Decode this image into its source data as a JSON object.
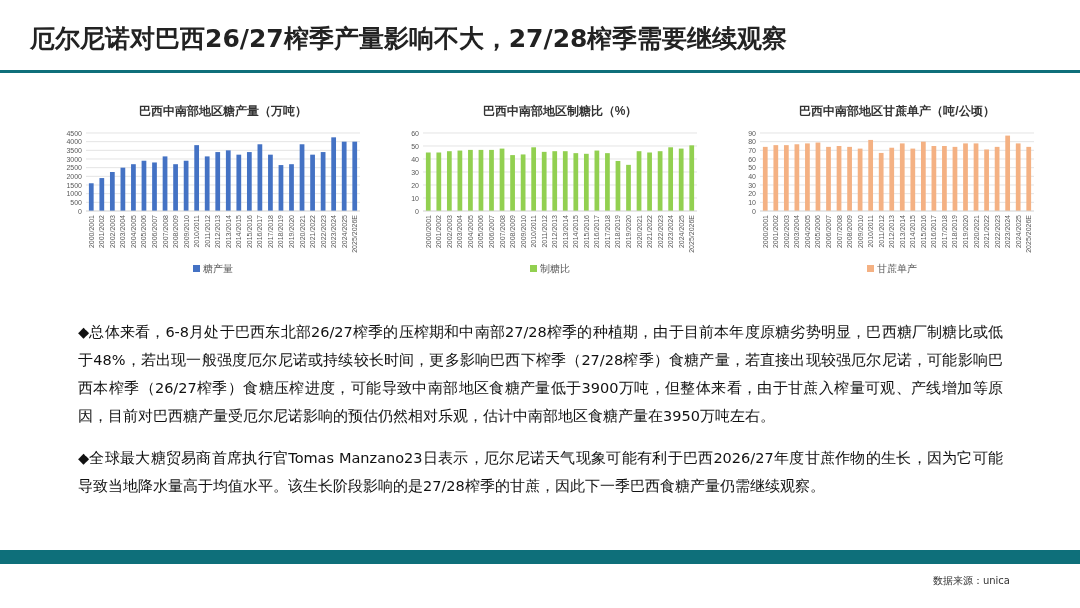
{
  "chart_data": [
    {
      "type": "other",
      "title": "厄尔尼诺对巴西26/27榨季产量影响不大，27/28榨季需要继续观察",
      "annotations": [
        "◆总体来看，6-8月处于巴西东北部26/27榨季的压榨期和中南部27/28榨季的种植期，由于目前本年度原糖劣势明显，巴西糖厂制糖比或低于48%，若出现一般强度厄尔尼诺或持续较长时间，更多影响巴西下榨季（27/28榨季）食糖产量，若直接出现较强厄尔尼诺，可能影响巴西本榨季（26/27榨季）食糖压榨进度，可能导致中南部地区食糖产量低于3900万吨，但整体来看，由于甘蔗入榨量可观、产线增加等原因，目前对巴西糖产量受厄尔尼诺影响的预估仍然相对乐观，估计中南部地区食糖产量在3950万吨左右。",
        "◆全球最大糖贸易商首席执行官Tomas Manzano23日表示，厄尔尼诺天气现象可能有利于巴西2026/27年度甘蔗作物的生长，因为它可能导致当地降水量高于均值水平。该生长阶段影响的是27/28榨季的甘蔗，因此下一季巴西食糖产量仍需继续观察。",
        "数据来源：unica"
      ]
    },
    {
      "type": "bar",
      "title": "巴西中南部地区糖产量（万吨）",
      "categories": [
        "2000/2001",
        "2001/2002",
        "2002/2003",
        "2003/2004",
        "2004/2005",
        "2005/2006",
        "2006/2007",
        "2007/2008",
        "2008/2009",
        "2009/2010",
        "2010/2011",
        "2011/2012",
        "2012/2013",
        "2013/2014",
        "2014/2015",
        "2015/2016",
        "2016/2017",
        "2017/2018",
        "2018/2019",
        "2019/2020",
        "2020/2021",
        "2021/2022",
        "2022/2023",
        "2023/2024",
        "2024/2025",
        "2025/2026E"
      ],
      "series": [
        {
          "name": "糖产量",
          "color": "#4472c4",
          "values": [
            1600,
            1900,
            2250,
            2500,
            2700,
            2900,
            2800,
            3150,
            2700,
            2900,
            3800,
            3150,
            3400,
            3500,
            3250,
            3400,
            3850,
            3250,
            2650,
            2700,
            3850,
            3250,
            3400,
            4250,
            4000,
            4000
          ]
        }
      ],
      "ylim": [
        0,
        4500
      ],
      "yticks": [
        0,
        500,
        1000,
        1500,
        2000,
        2500,
        3000,
        3500,
        4000,
        4500
      ],
      "grid": "y",
      "legend": "bottom"
    },
    {
      "type": "bar",
      "title": "巴西中南部地区制糖比（%）",
      "categories": [
        "2000/2001",
        "2001/2002",
        "2002/2003",
        "2003/2004",
        "2004/2005",
        "2005/2006",
        "2006/2007",
        "2007/2008",
        "2008/2009",
        "2009/2010",
        "2010/2011",
        "2011/2012",
        "2012/2013",
        "2013/2014",
        "2014/2015",
        "2015/2016",
        "2016/2017",
        "2017/2018",
        "2018/2019",
        "2019/2020",
        "2020/2021",
        "2021/2022",
        "2022/2023",
        "2023/2024",
        "2024/2025",
        "2025/2026E"
      ],
      "series": [
        {
          "name": "制糖比",
          "color": "#92d050",
          "values": [
            45,
            45,
            46,
            46.5,
            47,
            47,
            47,
            48,
            43,
            43.5,
            49,
            45.5,
            46,
            46,
            44.5,
            44,
            46.5,
            44.5,
            38.5,
            35.5,
            46,
            45,
            46,
            49,
            48,
            50.5
          ]
        }
      ],
      "ylim": [
        0,
        60
      ],
      "yticks": [
        0,
        10,
        20,
        30,
        40,
        50,
        60
      ],
      "grid": "y",
      "legend": "bottom"
    },
    {
      "type": "bar",
      "title": "巴西中南部地区甘蔗单产（吨/公顷）",
      "categories": [
        "2000/2001",
        "2001/2002",
        "2002/2003",
        "2003/2004",
        "2004/2005",
        "2005/2006",
        "2006/2007",
        "2007/2008",
        "2008/2009",
        "2009/2010",
        "2010/2011",
        "2011/2012",
        "2012/2013",
        "2013/2014",
        "2014/2015",
        "2015/2016",
        "2016/2017",
        "2017/2018",
        "2018/2019",
        "2019/2020",
        "2020/2021",
        "2021/2022",
        "2022/2023",
        "2023/2024",
        "2024/2025",
        "2025/2026E"
      ],
      "series": [
        {
          "name": "甘蔗单产",
          "color": "#f4b183",
          "values": [
            74,
            76,
            76,
            77,
            78,
            79,
            74,
            75,
            74,
            72,
            82,
            67,
            73,
            78,
            72,
            80,
            75,
            75,
            74,
            78,
            78,
            71,
            74,
            87,
            78,
            74
          ]
        }
      ],
      "ylim": [
        0,
        90
      ],
      "yticks": [
        0,
        10,
        20,
        30,
        40,
        50,
        60,
        70,
        80,
        90
      ],
      "grid": "y",
      "legend": "bottom"
    }
  ]
}
